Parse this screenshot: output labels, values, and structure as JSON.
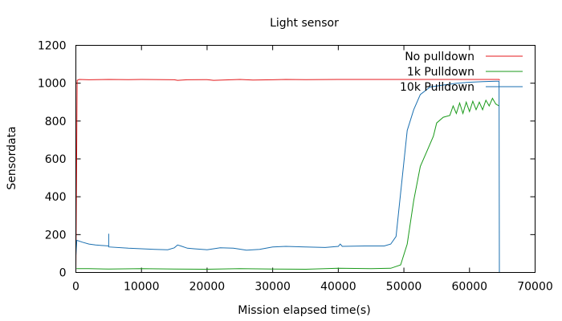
{
  "chart_data": {
    "type": "line",
    "title": "Light sensor",
    "xlabel": "Mission elapsed time(s)",
    "ylabel": "Sensordata",
    "xlim": [
      0,
      70000
    ],
    "ylim": [
      0,
      1200
    ],
    "xticks": [
      0,
      10000,
      20000,
      30000,
      40000,
      50000,
      60000,
      70000
    ],
    "yticks": [
      0,
      200,
      400,
      600,
      800,
      1000,
      1200
    ],
    "grid": false,
    "legend_position": "top-right",
    "series": [
      {
        "name": "No pulldown",
        "color": "#e41a1c",
        "points": [
          [
            0,
            0
          ],
          [
            100,
            500
          ],
          [
            200,
            1015
          ],
          [
            500,
            1020
          ],
          [
            2000,
            1018
          ],
          [
            5000,
            1020
          ],
          [
            8000,
            1019
          ],
          [
            10000,
            1020
          ],
          [
            15000,
            1018
          ],
          [
            15500,
            1015
          ],
          [
            17000,
            1018
          ],
          [
            20000,
            1019
          ],
          [
            21000,
            1015
          ],
          [
            25000,
            1020
          ],
          [
            27000,
            1017
          ],
          [
            30000,
            1018
          ],
          [
            32000,
            1020
          ],
          [
            35000,
            1019
          ],
          [
            40000,
            1020
          ],
          [
            45000,
            1020
          ],
          [
            50000,
            1020
          ],
          [
            55000,
            1020
          ],
          [
            60000,
            1020
          ],
          [
            62000,
            1020
          ],
          [
            64500,
            1020
          ],
          [
            64600,
            1015
          ]
        ]
      },
      {
        "name": "1k Pulldown",
        "color": "#1a9a1a",
        "points": [
          [
            100,
            20
          ],
          [
            2000,
            20
          ],
          [
            5000,
            18
          ],
          [
            10000,
            20
          ],
          [
            15000,
            18
          ],
          [
            20000,
            17
          ],
          [
            25000,
            20
          ],
          [
            30000,
            18
          ],
          [
            35000,
            17
          ],
          [
            40000,
            22
          ],
          [
            45000,
            20
          ],
          [
            48000,
            22
          ],
          [
            49500,
            40
          ],
          [
            50500,
            150
          ],
          [
            51500,
            380
          ],
          [
            52500,
            560
          ],
          [
            53500,
            640
          ],
          [
            54500,
            720
          ],
          [
            55000,
            790
          ],
          [
            56000,
            820
          ],
          [
            57000,
            830
          ],
          [
            57500,
            880
          ],
          [
            58000,
            840
          ],
          [
            58500,
            895
          ],
          [
            59000,
            840
          ],
          [
            59500,
            900
          ],
          [
            60000,
            850
          ],
          [
            60500,
            905
          ],
          [
            61000,
            860
          ],
          [
            61500,
            900
          ],
          [
            62000,
            860
          ],
          [
            62500,
            910
          ],
          [
            63000,
            880
          ],
          [
            63500,
            920
          ],
          [
            64000,
            890
          ],
          [
            64500,
            880
          ]
        ]
      },
      {
        "name": "10k Pulldown",
        "color": "#1a6fb0",
        "points": [
          [
            0,
            90
          ],
          [
            150,
            170
          ],
          [
            1000,
            160
          ],
          [
            2000,
            150
          ],
          [
            3000,
            145
          ],
          [
            5000,
            140
          ],
          [
            5001,
            205
          ],
          [
            5002,
            135
          ],
          [
            8000,
            128
          ],
          [
            10000,
            125
          ],
          [
            12000,
            122
          ],
          [
            14000,
            120
          ],
          [
            15000,
            130
          ],
          [
            15500,
            145
          ],
          [
            16000,
            140
          ],
          [
            17000,
            128
          ],
          [
            18000,
            125
          ],
          [
            20000,
            120
          ],
          [
            22000,
            130
          ],
          [
            24000,
            128
          ],
          [
            26000,
            118
          ],
          [
            28000,
            122
          ],
          [
            30000,
            135
          ],
          [
            32000,
            138
          ],
          [
            35000,
            135
          ],
          [
            38000,
            132
          ],
          [
            40000,
            138
          ],
          [
            40300,
            150
          ],
          [
            40600,
            138
          ],
          [
            44000,
            140
          ],
          [
            47000,
            140
          ],
          [
            48000,
            150
          ],
          [
            48800,
            190
          ],
          [
            49500,
            420
          ],
          [
            50500,
            750
          ],
          [
            51500,
            860
          ],
          [
            52500,
            940
          ],
          [
            54000,
            980
          ],
          [
            56000,
            990
          ],
          [
            58000,
            1000
          ],
          [
            60000,
            1005
          ],
          [
            62000,
            1008
          ],
          [
            64000,
            1010
          ],
          [
            64500,
            1010
          ],
          [
            64550,
            0
          ]
        ]
      }
    ]
  }
}
